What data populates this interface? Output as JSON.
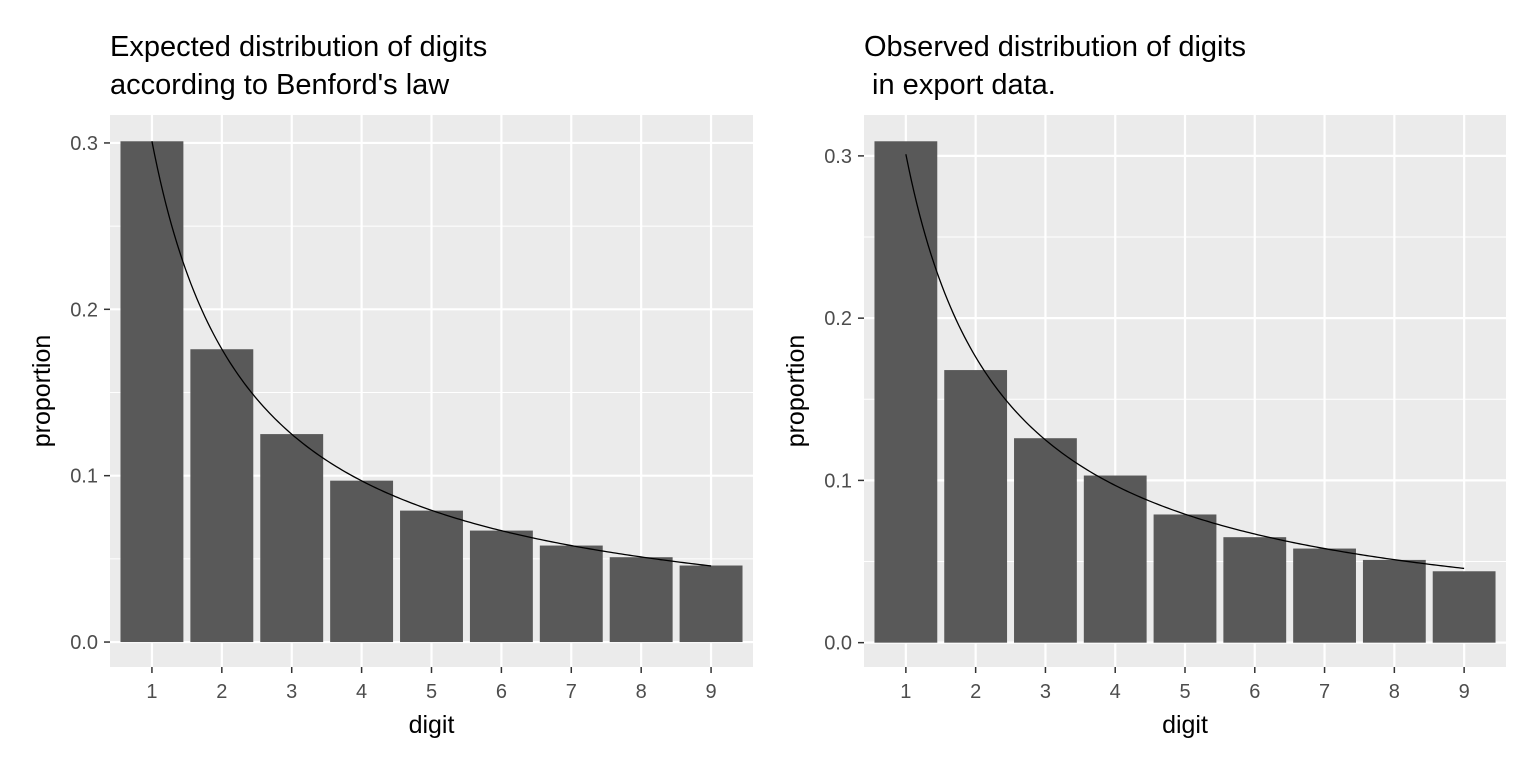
{
  "colors": {
    "panel_background": "#ebebeb",
    "grid_major": "#ffffff",
    "bar_fill": "#595959",
    "curve": "#000000",
    "tick_text": "#4d4d4d"
  },
  "chart_data": [
    {
      "type": "bar",
      "title_lines": [
        "Expected distribution of digits",
        "according to Benford's law"
      ],
      "xlabel": "digit",
      "ylabel": "proportion",
      "categories": [
        "1",
        "2",
        "3",
        "4",
        "5",
        "6",
        "7",
        "8",
        "9"
      ],
      "values": [
        0.301,
        0.176,
        0.125,
        0.097,
        0.079,
        0.067,
        0.058,
        0.051,
        0.046
      ],
      "overlay_line": {
        "type": "line",
        "description": "Benford curve log10(1 + 1/d)",
        "x": [
          1,
          9
        ],
        "function": "log10(1+1/x)"
      },
      "ylim": [
        -0.015,
        0.301
      ],
      "yticks": [
        0.0,
        0.1,
        0.2,
        0.3
      ],
      "ytick_labels": [
        "0.0",
        "0.1",
        "0.2",
        "0.3"
      ],
      "grid": true,
      "legend": "none"
    },
    {
      "type": "bar",
      "title_lines": [
        "Observed distribution of digits",
        " in export data."
      ],
      "xlabel": "digit",
      "ylabel": "proportion",
      "categories": [
        "1",
        "2",
        "3",
        "4",
        "5",
        "6",
        "7",
        "8",
        "9"
      ],
      "values": [
        0.309,
        0.168,
        0.126,
        0.103,
        0.079,
        0.065,
        0.058,
        0.051,
        0.044
      ],
      "overlay_line": {
        "type": "line",
        "description": "Benford curve log10(1 + 1/d)",
        "x": [
          1,
          9
        ],
        "function": "log10(1+1/x)"
      },
      "ylim": [
        -0.015,
        0.309
      ],
      "yticks": [
        0.0,
        0.1,
        0.2,
        0.3
      ],
      "ytick_labels": [
        "0.0",
        "0.1",
        "0.2",
        "0.3"
      ],
      "grid": true,
      "legend": "none"
    }
  ]
}
